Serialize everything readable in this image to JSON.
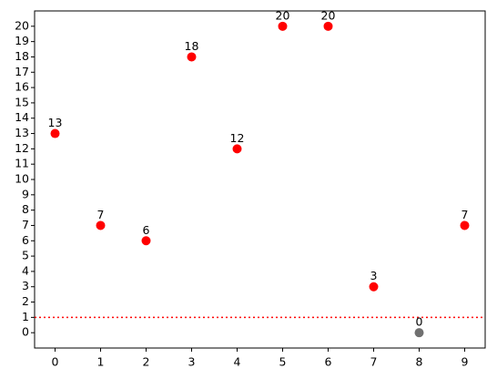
{
  "chart_data": {
    "type": "scatter",
    "x": [
      0,
      1,
      2,
      3,
      4,
      5,
      6,
      7,
      8,
      9
    ],
    "values": [
      13,
      7,
      6,
      18,
      12,
      20,
      20,
      3,
      0,
      7
    ],
    "point_colors": [
      "#ff0000",
      "#ff0000",
      "#ff0000",
      "#ff0000",
      "#ff0000",
      "#ff0000",
      "#ff0000",
      "#ff0000",
      "#707070",
      "#ff0000"
    ],
    "xlim": [
      -0.45,
      9.45
    ],
    "ylim": [
      -1,
      21
    ],
    "xticks": [
      0,
      1,
      2,
      3,
      4,
      5,
      6,
      7,
      8,
      9
    ],
    "yticks": [
      0,
      1,
      2,
      3,
      4,
      5,
      6,
      7,
      8,
      9,
      10,
      11,
      12,
      13,
      14,
      15,
      16,
      17,
      18,
      19,
      20
    ],
    "threshold": {
      "value": 1,
      "color": "#ff0000"
    }
  }
}
